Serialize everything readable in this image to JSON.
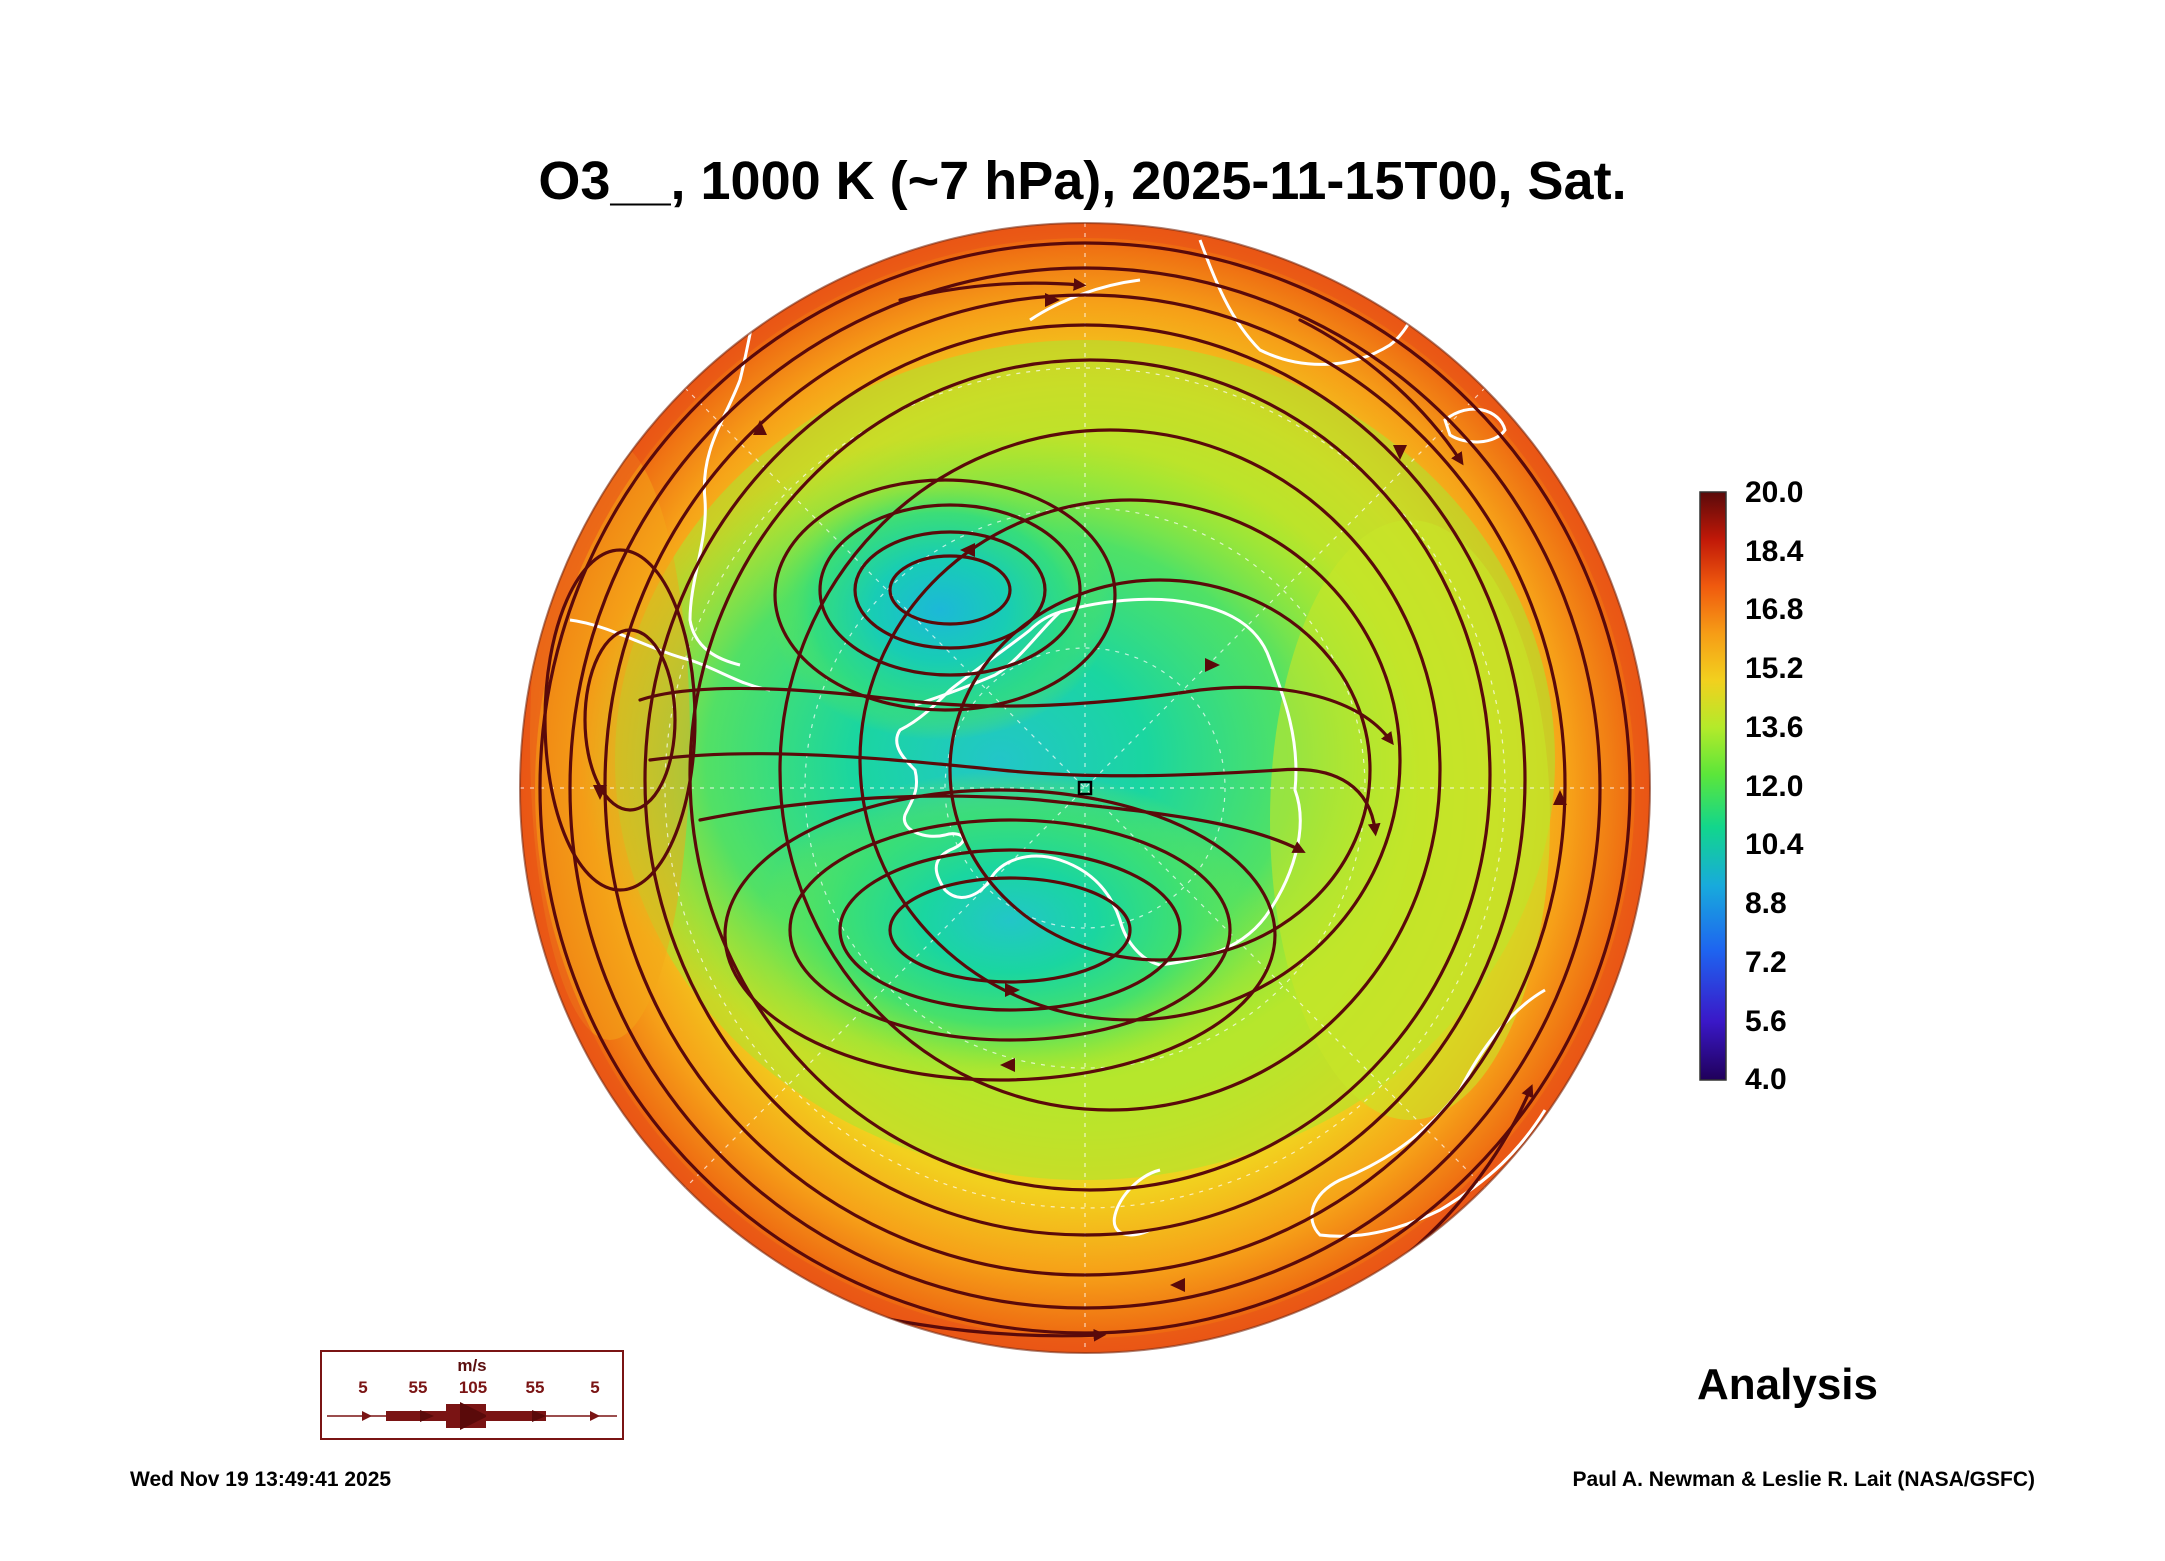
{
  "title": "O3__, 1000 K (~7 hPa), 2025-11-15T00, Sat.",
  "colorbar": {
    "ticks": [
      "20.0",
      "18.4",
      "16.8",
      "15.2",
      "13.6",
      "12.0",
      "10.4",
      "8.8",
      "7.2",
      "5.6",
      "4.0"
    ],
    "min": 4.0,
    "max": 20.0,
    "colors": [
      "#20005a",
      "#3a18c8",
      "#1e64f0",
      "#18aadc",
      "#12d68c",
      "#5ce63a",
      "#b4ea2a",
      "#f2d01e",
      "#f69c16",
      "#f05a0e",
      "#c01808",
      "#5a0a0a"
    ]
  },
  "wind_legend": {
    "unit": "m/s",
    "values": [
      "5",
      "55",
      "105",
      "55",
      "5"
    ]
  },
  "panel_label": "Analysis",
  "timestamp": "Wed Nov 19 13:49:41 2025",
  "credit": "Paul A. Newman & Leslie R. Lait (NASA/GSFC)"
}
